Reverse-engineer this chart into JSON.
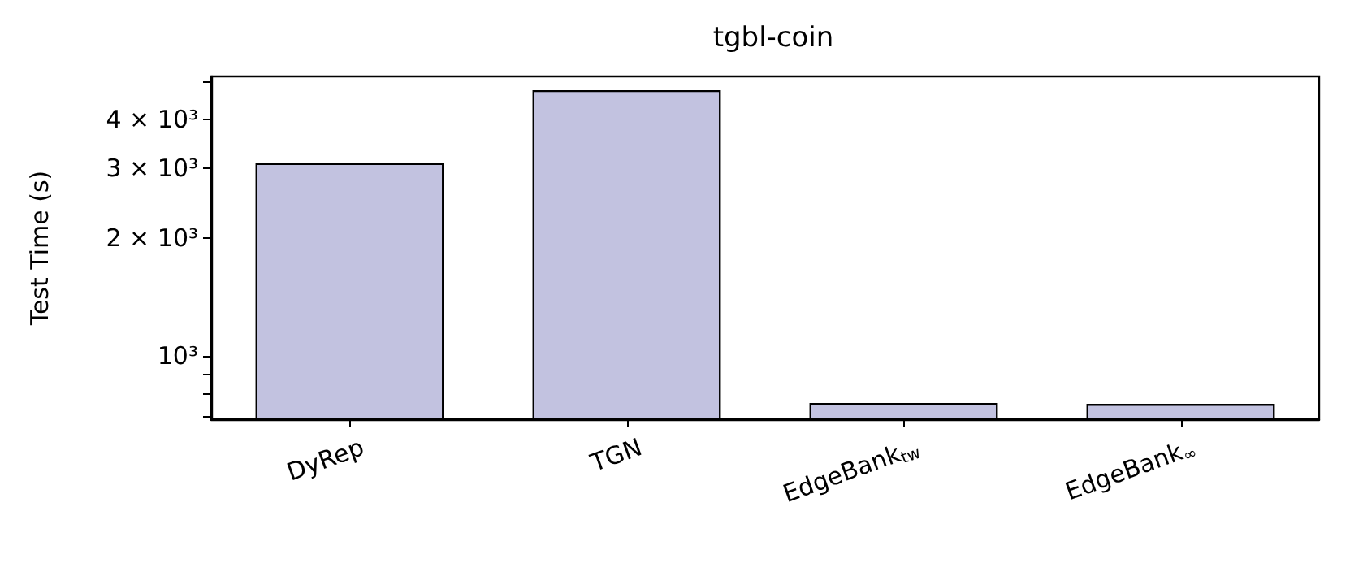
{
  "chart_data": {
    "type": "bar",
    "title": "tgbl-coin",
    "ylabel": "Test Time (s)",
    "categories": [
      "DyRep",
      "TGN",
      "EdgeBank$_{tw}$",
      "EdgeBank$_{∞}$"
    ],
    "values": [
      3100,
      4750,
      759,
      755
    ],
    "color": "#c2c2e0",
    "log": "y",
    "ylim": [
      690,
      5150
    ],
    "yticks": [
      {
        "value": 700,
        "label": null
      },
      {
        "value": 800,
        "label": null
      },
      {
        "value": 900,
        "label": null
      },
      {
        "value": 1000,
        "label": "10³"
      },
      {
        "value": 2000,
        "label": "2 × 10³"
      },
      {
        "value": 3000,
        "label": "3 × 10³"
      },
      {
        "value": 4000,
        "label": "4 × 10³"
      },
      {
        "value": 5000,
        "label": null
      }
    ],
    "grid": false
  }
}
